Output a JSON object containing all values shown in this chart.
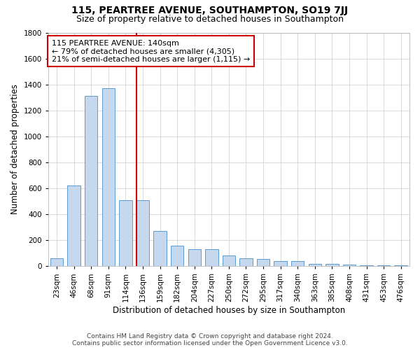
{
  "title": "115, PEARTREE AVENUE, SOUTHAMPTON, SO19 7JJ",
  "subtitle": "Size of property relative to detached houses in Southampton",
  "xlabel": "Distribution of detached houses by size in Southampton",
  "ylabel": "Number of detached properties",
  "property_label": "115 PEARTREE AVENUE: 140sqm",
  "annotation_line1": "← 79% of detached houses are smaller (4,305)",
  "annotation_line2": "21% of semi-detached houses are larger (1,115) →",
  "footer_line1": "Contains HM Land Registry data © Crown copyright and database right 2024.",
  "footer_line2": "Contains public sector information licensed under the Open Government Licence v3.0.",
  "bar_color": "#c5d8ed",
  "bar_edge_color": "#5b9bd5",
  "vline_color": "#cc0000",
  "annotation_box_color": "#cc0000",
  "background_color": "#ffffff",
  "grid_color": "#cccccc",
  "categories": [
    "23sqm",
    "46sqm",
    "68sqm",
    "91sqm",
    "114sqm",
    "136sqm",
    "159sqm",
    "182sqm",
    "204sqm",
    "227sqm",
    "250sqm",
    "272sqm",
    "295sqm",
    "317sqm",
    "340sqm",
    "363sqm",
    "385sqm",
    "408sqm",
    "431sqm",
    "453sqm",
    "476sqm"
  ],
  "values": [
    62,
    620,
    1310,
    1370,
    510,
    510,
    270,
    160,
    130,
    130,
    80,
    60,
    55,
    40,
    40,
    20,
    20,
    10,
    8,
    5,
    5
  ],
  "ylim": [
    0,
    1800
  ],
  "yticks": [
    0,
    200,
    400,
    600,
    800,
    1000,
    1200,
    1400,
    1600,
    1800
  ],
  "vline_x": 136,
  "title_fontsize": 10,
  "subtitle_fontsize": 9,
  "label_fontsize": 8.5,
  "tick_fontsize": 7.5,
  "footer_fontsize": 6.5,
  "annotation_fontsize": 8
}
